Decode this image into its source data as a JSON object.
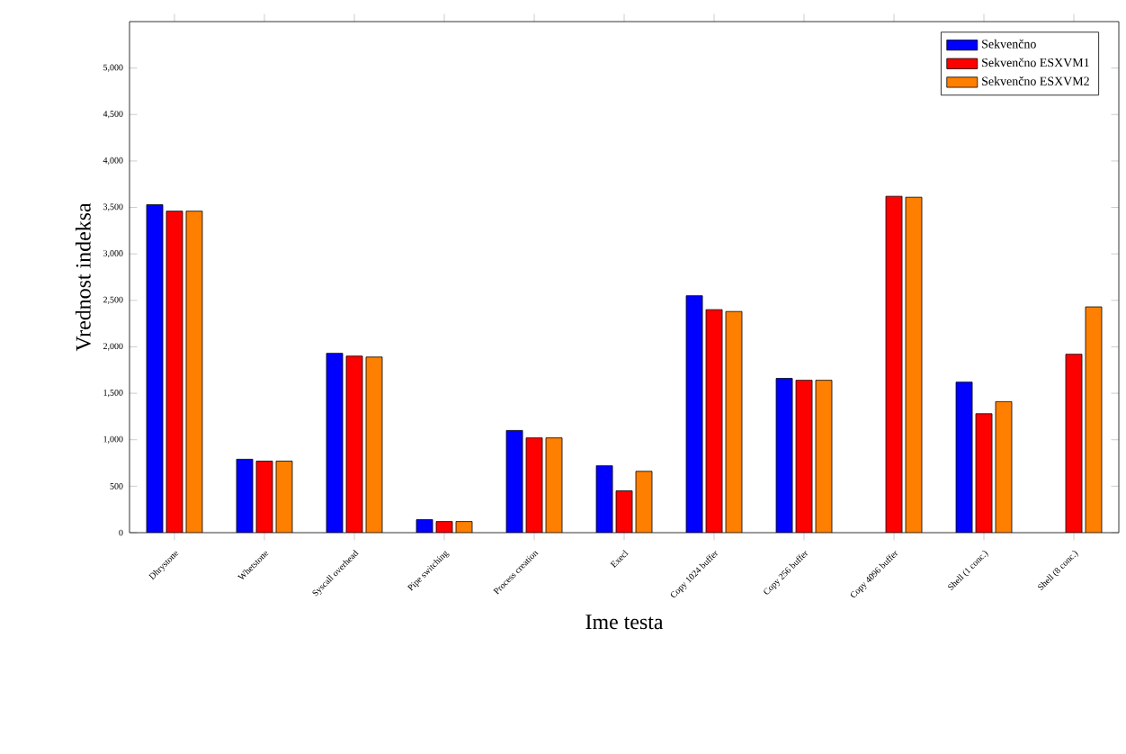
{
  "chart_data": {
    "type": "bar",
    "xlabel": "Ime testa",
    "ylabel": "Vrednost indeksa",
    "categories": [
      "Dhrystone",
      "Whetstone",
      "Syscall overhead",
      "Pipe switching",
      "Process creation",
      "Execl",
      "Copy 1024 buffer",
      "Copy 256 buffer",
      "Copy 4096 buffer",
      "Shell (1 conc.)",
      "Shell (8 conc.)"
    ],
    "series": [
      {
        "name": "Sekvenčno",
        "color": "#0000ff",
        "values": [
          3530,
          790,
          1930,
          140,
          1100,
          720,
          2550,
          1660,
          null,
          1620,
          null
        ]
      },
      {
        "name": "Sekvenčno ESXVM1",
        "color": "#ff0000",
        "values": [
          3460,
          770,
          1900,
          120,
          1020,
          450,
          2400,
          1640,
          3620,
          1280,
          1920
        ]
      },
      {
        "name": "Sekvenčno ESXVM2",
        "color": "#ff8000",
        "values": [
          3460,
          770,
          1890,
          120,
          1020,
          660,
          2380,
          1640,
          3610,
          1410,
          2430
        ]
      }
    ],
    "ylim": [
      0,
      5500
    ],
    "yticks": [
      0,
      500,
      {
        "value": 1000,
        "label": "1,000"
      },
      {
        "value": 1500,
        "label": "1,500"
      },
      {
        "value": 2000,
        "label": "2,000"
      },
      {
        "value": 2500,
        "label": "2,500"
      },
      {
        "value": 3000,
        "label": "3,000"
      },
      {
        "value": 3500,
        "label": "3,500"
      },
      {
        "value": 4000,
        "label": "4,000"
      },
      {
        "value": 4500,
        "label": "4,500"
      },
      {
        "value": 5000,
        "label": "5,000"
      }
    ],
    "grid": false,
    "legend": "top right"
  }
}
